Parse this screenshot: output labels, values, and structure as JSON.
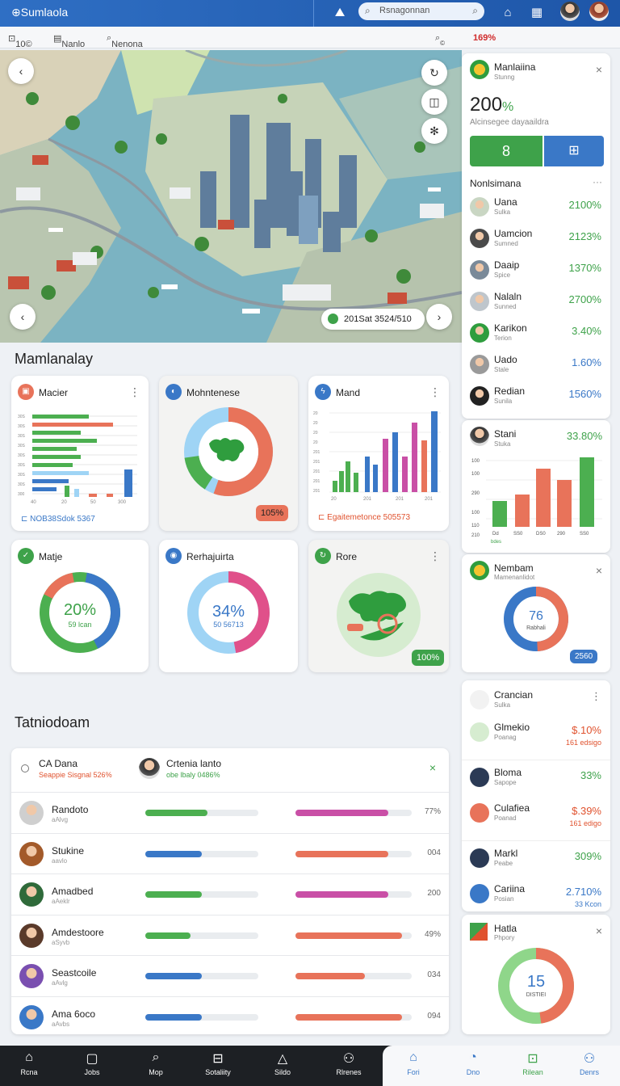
{
  "topbar": {
    "brand": "Sumlaola",
    "search_placeholder": "Rsnagonnan",
    "icons": [
      "landscape-icon",
      "search-icon",
      "home-icon",
      "news-icon"
    ]
  },
  "subbar": {
    "item1": "10©",
    "item2": "Nanlo",
    "item3": "Nenona Cada",
    "item4": "©",
    "item5": "169%"
  },
  "map": {
    "chip": "201Sat 3524/510"
  },
  "section1": {
    "title": "Mamlanalay"
  },
  "cards": {
    "c1": {
      "title": "Macier",
      "footer": "NOB38Sdok 5367",
      "axis": [
        "40",
        "20",
        "50",
        "300"
      ],
      "rows": [
        "30S",
        "30S",
        "30S",
        "30S",
        "30S",
        "30S",
        "30S",
        "30S",
        "30S",
        "300"
      ]
    },
    "c2": {
      "title": "Mohntenese",
      "badge": "105%"
    },
    "c3": {
      "title": "Mand",
      "footer": "Egaitemetonce 505573",
      "axis": [
        "20",
        "20",
        "20",
        "20",
        "201",
        "201",
        "201",
        "201",
        "201",
        "201"
      ],
      "x": [
        "20",
        "201",
        "201",
        "201"
      ]
    },
    "c4": {
      "title": "Matje",
      "center": "20%",
      "sub": "59 lcan"
    },
    "c5": {
      "title": "Rerhajuirta",
      "center": "34%",
      "sub": "50 56713"
    },
    "c6": {
      "title": "Rore",
      "badge": "100%"
    }
  },
  "rightpanel": {
    "header": {
      "name": "Manlaiina",
      "sub": "Stunng",
      "big": "200",
      "pct": "%",
      "desc": "Alcinsegee dayaaildra"
    },
    "buttons": {
      "left": "8",
      "right": "⊞"
    },
    "list_title": "Nonlsimana",
    "list": [
      {
        "name": "Uana",
        "sub": "Sulka",
        "val": "2100%",
        "color": "#3ea24a"
      },
      {
        "name": "Uamcion",
        "sub": "Sumned",
        "val": "2123%",
        "color": "#3ea24a"
      },
      {
        "name": "Daaip",
        "sub": "Spice",
        "val": "1370%",
        "color": "#3ea24a"
      },
      {
        "name": "Nalaln",
        "sub": "Sunned",
        "val": "2700%",
        "color": "#3ea24a"
      },
      {
        "name": "Karikon",
        "sub": "Terion",
        "val": "3.40%",
        "color": "#3ea24a"
      },
      {
        "name": "Uado",
        "sub": "Stale",
        "val": "1.60%",
        "color": "#3a78c7"
      },
      {
        "name": "Redian",
        "sub": "Sunila",
        "val": "1560%",
        "color": "#3a78c7"
      }
    ],
    "stani": {
      "name": "Stani",
      "sub": "Stuka",
      "val": "33.80%",
      "yaxis": [
        "100",
        "100",
        "290",
        "100",
        "110",
        "210"
      ],
      "x": [
        "Dd",
        "SS0",
        "DS0",
        "290",
        "SS0"
      ],
      "xnote": "bdes"
    },
    "nembam": {
      "name": "Nembam",
      "sub": "Mamenanlidot",
      "center": "76",
      "csub": "Rabhali",
      "badge": "2560"
    },
    "group2": [
      {
        "name": "Crancian",
        "sub": "Sulka",
        "val": "",
        "unit": ""
      },
      {
        "name": "Glmekio",
        "sub": "Poanag",
        "val": "$.10",
        "unit": "%",
        "note": "161 edsigo",
        "color": "#e0522e"
      },
      {
        "name": "Bloma",
        "sub": "Sapope",
        "val": "33%",
        "unit": "",
        "color": "#3ea24a"
      },
      {
        "name": "Culafiea",
        "sub": "Poanad",
        "val": "$.39",
        "unit": "%",
        "note": "161 edigo",
        "color": "#e0522e"
      },
      {
        "name": "Markl",
        "sub": "Peabe",
        "val": "309%",
        "unit": "",
        "color": "#3ea24a"
      },
      {
        "name": "Cariina",
        "sub": "Posian",
        "val": "2.710%",
        "unit": "",
        "note": "33 Kcon",
        "color": "#3a78c7"
      }
    ],
    "hatla": {
      "name": "Hatla",
      "sub": "Phpory",
      "center": "15",
      "csub": "DISTIEI"
    }
  },
  "section2": {
    "title": "Tatniodoam"
  },
  "table": {
    "head": {
      "left_name": "CA Dana",
      "left_sub": "Seappie Sisgnal 526%",
      "mid_name": "Crtenia lanto",
      "mid_sub": "obe lbaly 0486%"
    },
    "rows": [
      {
        "name": "Randoto",
        "sub": "aAlvg",
        "num": "77%",
        "b1": 0.55,
        "c1": "#4caf50",
        "b2": 0.8,
        "c2": "#c94fa6"
      },
      {
        "name": "Stukine",
        "sub": "aavlo",
        "num": "004",
        "b1": 0.5,
        "c1": "#3a78c7",
        "b2": 0.8,
        "c2": "#e8735a"
      },
      {
        "name": "Amadbed",
        "sub": "aAeklr",
        "num": "200",
        "b1": 0.5,
        "c1": "#4caf50",
        "b2": 0.8,
        "c2": "#c94fa6"
      },
      {
        "name": "Amdestoore",
        "sub": "aSyvb",
        "num": "49%",
        "b1": 0.4,
        "c1": "#4caf50",
        "b2": 0.92,
        "c2": "#e8735a"
      },
      {
        "name": "Seastcoile",
        "sub": "aAvlg",
        "num": "034",
        "b1": 0.5,
        "c1": "#3a78c7",
        "b2": 0.6,
        "c2": "#e8735a"
      },
      {
        "name": "Ama 6oco",
        "sub": "aAvbs",
        "num": "094",
        "b1": 0.5,
        "c1": "#3a78c7",
        "b2": 0.92,
        "c2": "#e8735a"
      }
    ]
  },
  "bottomnav": {
    "items": [
      "Rcna",
      "Jobs",
      "Mop",
      "Sotaliity",
      "Sildo",
      "Rlrenes",
      "Fori",
      "Dno",
      "Rilean",
      "Denrs"
    ]
  }
}
